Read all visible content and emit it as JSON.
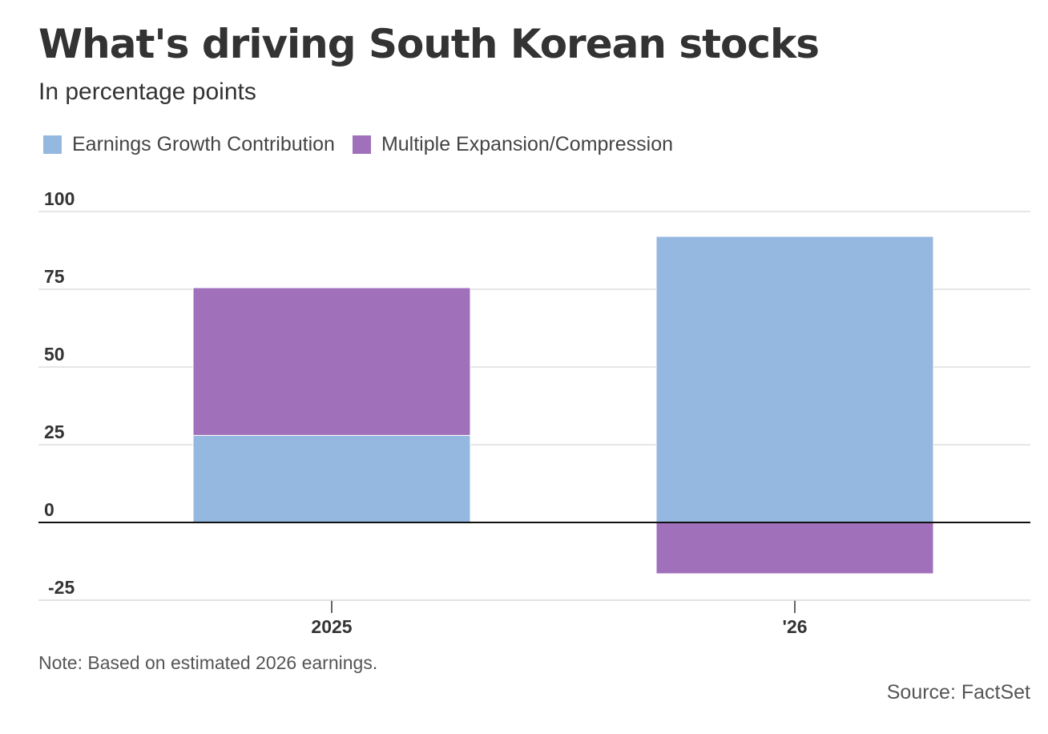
{
  "chart_data": {
    "type": "bar",
    "stacked": true,
    "title": "What's driving South Korean stocks",
    "subtitle": "In percentage points",
    "categories": [
      "2025",
      "'26"
    ],
    "series": [
      {
        "name": "Earnings Growth Contribution",
        "values": [
          28,
          92
        ],
        "color": "#95b8e0"
      },
      {
        "name": "Multiple Expansion/Compression",
        "values": [
          47.5,
          -16.5
        ],
        "color": "#a070bb"
      }
    ],
    "ylim": [
      -25,
      100
    ],
    "yticks": [
      "100",
      "75",
      "50",
      "25",
      "0",
      "-25"
    ],
    "ytick_values": [
      100,
      75,
      50,
      25,
      0,
      -25
    ],
    "grid": true,
    "legend_position": "top-left",
    "note": "Note: Based on estimated 2026 earnings.",
    "source": "Source: FactSet"
  }
}
